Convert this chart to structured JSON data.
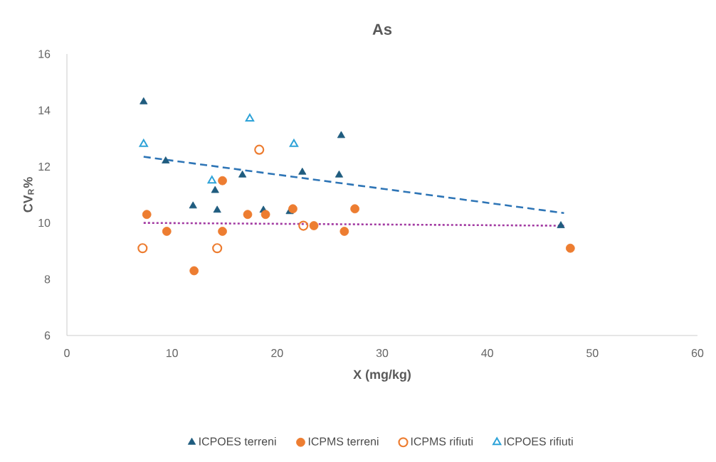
{
  "chart_data": {
    "type": "scatter",
    "title": "As",
    "xlabel": "X (mg/kg)",
    "ylabel": "CV$_{R}$%",
    "xlim": [
      0,
      60
    ],
    "xticks": [
      0,
      10,
      20,
      30,
      40,
      50,
      60
    ],
    "ylim": [
      6,
      16
    ],
    "yticks": [
      6,
      8,
      10,
      12,
      14,
      16
    ],
    "legend": "bottom",
    "series": [
      {
        "name": "ICPOES terreni",
        "color": "#1f5c7f",
        "marker": "triangle",
        "x": [
          7.3,
          9.4,
          12.0,
          14.1,
          14.3,
          16.7,
          18.7,
          21.2,
          22.4,
          25.9,
          26.1,
          47.0
        ],
        "values": [
          14.3,
          12.2,
          10.6,
          11.15,
          10.45,
          11.7,
          10.45,
          10.4,
          11.8,
          11.7,
          13.1,
          9.9
        ]
      },
      {
        "name": "ICPMS terreni",
        "color": "#ed7d31",
        "marker": "circle",
        "x": [
          7.6,
          9.5,
          12.1,
          14.8,
          14.8,
          17.2,
          18.9,
          21.5,
          23.5,
          26.4,
          27.4,
          47.9
        ],
        "values": [
          10.3,
          9.7,
          8.3,
          11.5,
          9.7,
          10.3,
          10.3,
          10.5,
          9.9,
          9.7,
          10.5,
          9.1
        ]
      },
      {
        "name": "ICPMS rifiuti",
        "color": "#ed7d31",
        "marker": "circle-open",
        "x": [
          7.2,
          14.3,
          18.3,
          22.5
        ],
        "values": [
          9.1,
          9.1,
          12.6,
          9.9
        ]
      },
      {
        "name": "ICPOES rifiuti",
        "color": "#2ea3d8",
        "marker": "triangle-open",
        "x": [
          7.3,
          13.8,
          17.4,
          21.6
        ],
        "values": [
          12.8,
          11.5,
          13.7,
          12.8
        ]
      },
      {
        "type": "line",
        "color": "#2e75b6",
        "line_style": "dashed",
        "marker": "none",
        "x": [
          7.3,
          47.3
        ],
        "values": [
          12.35,
          10.35
        ]
      },
      {
        "type": "line",
        "color": "#a23aa2",
        "line_style": "dotted",
        "marker": "none",
        "x": [
          7.3,
          47.3
        ],
        "values": [
          10.0,
          9.9
        ]
      }
    ]
  }
}
